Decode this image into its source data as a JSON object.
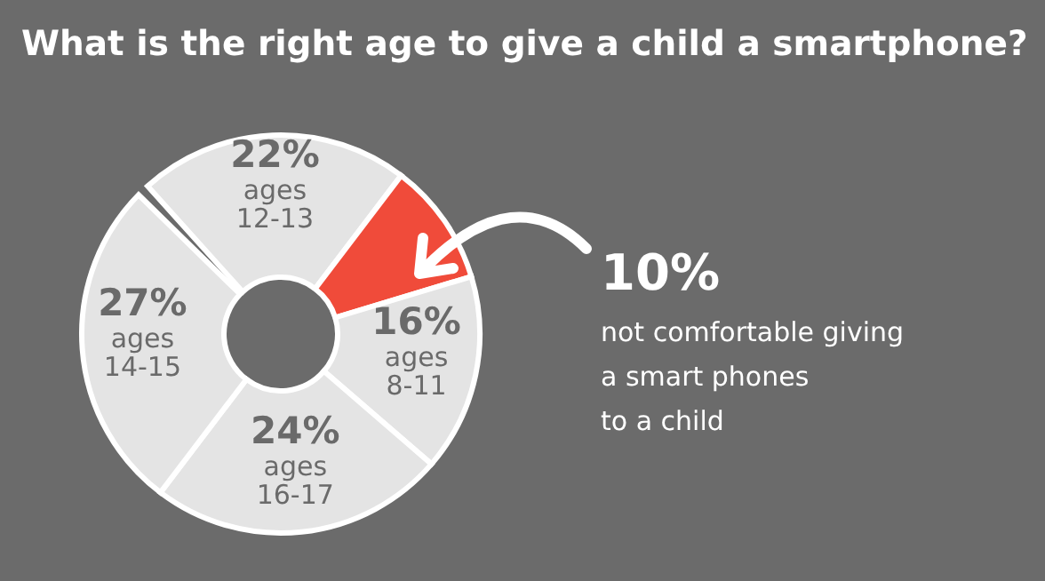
{
  "chart_data": {
    "type": "donut",
    "title": "What is the right age to give a child a smartphone?",
    "categories": [
      "ages 12-13",
      null,
      "ages 8-11",
      "ages 16-17",
      "ages 14-15"
    ],
    "values": [
      22,
      10,
      16,
      24,
      27
    ],
    "value_labels": [
      "22%",
      "10%",
      "16%",
      "24%",
      "27%"
    ],
    "colors": [
      "#e4e4e4",
      "#f04b3a",
      "#e4e4e4",
      "#e4e4e4",
      "#e4e4e4"
    ],
    "annotations": [
      "not comfortable giving",
      "a smart phones",
      "to a child"
    ]
  }
}
